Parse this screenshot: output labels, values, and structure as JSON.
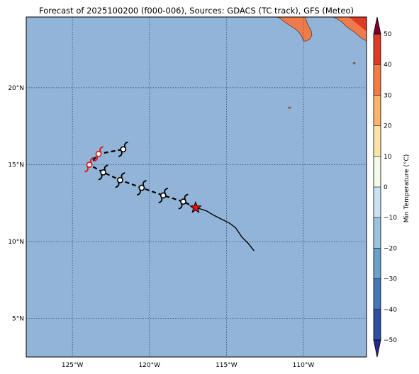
{
  "title": "Forecast of 2025100200 (f000-006), Sources: GDACS (TC track), GFS (Meteo)",
  "map": {
    "lon_range": [
      -128,
      -105.9
    ],
    "lat_range": [
      2.5,
      24.6
    ],
    "ocean_color": "#92b4d8",
    "land_color": "#f07b4a",
    "gridline_style": "dotted",
    "lon_ticks": [
      {
        "value": -125,
        "label": "125°W"
      },
      {
        "value": -120,
        "label": "120°W"
      },
      {
        "value": -115,
        "label": "115°W"
      },
      {
        "value": -110,
        "label": "110°W"
      }
    ],
    "lat_ticks": [
      {
        "value": 5,
        "label": "5°N"
      },
      {
        "value": 10,
        "label": "10°N"
      },
      {
        "value": 15,
        "label": "15°N"
      },
      {
        "value": 20,
        "label": "20°N"
      }
    ]
  },
  "observed_track": [
    [
      -113.2,
      9.4
    ],
    [
      -113.6,
      9.9
    ],
    [
      -114.0,
      10.3
    ],
    [
      -114.4,
      10.9
    ],
    [
      -114.8,
      11.2
    ],
    [
      -115.4,
      11.5
    ],
    [
      -115.8,
      11.7
    ],
    [
      -116.3,
      12.0
    ],
    [
      -116.6,
      12.1
    ],
    [
      -117.0,
      12.2
    ]
  ],
  "current_position": {
    "lon": -117.0,
    "lat": 12.2,
    "marker": "star-icon",
    "color": "#e01010"
  },
  "forecast_track": {
    "line_style": "dashed",
    "points": [
      {
        "lon": -117.0,
        "lat": 12.2
      },
      {
        "lon": -117.8,
        "lat": 12.6,
        "symbol": "tropical-storm-icon",
        "color": "#000000"
      },
      {
        "lon": -119.1,
        "lat": 13.0,
        "symbol": "tropical-storm-icon",
        "color": "#000000"
      },
      {
        "lon": -120.5,
        "lat": 13.5,
        "symbol": "tropical-storm-icon",
        "color": "#000000"
      },
      {
        "lon": -121.9,
        "lat": 14.0,
        "symbol": "tropical-storm-icon",
        "color": "#000000"
      },
      {
        "lon": -123.0,
        "lat": 14.5,
        "symbol": "tropical-storm-icon",
        "color": "#000000"
      },
      {
        "lon": -123.9,
        "lat": 15.0,
        "symbol": "hurricane-icon",
        "color": "#e01010"
      },
      {
        "lon": -123.3,
        "lat": 15.7,
        "symbol": "hurricane-icon",
        "color": "#e01010"
      },
      {
        "lon": -121.7,
        "lat": 16.0,
        "symbol": "tropical-storm-icon",
        "color": "#000000"
      }
    ]
  },
  "islands": [
    {
      "lon": -110.9,
      "lat": 18.7
    },
    {
      "lon": -106.7,
      "lat": 21.6
    }
  ],
  "colorbar": {
    "label": "Min Temperature (°C)",
    "min": -50,
    "max": 50,
    "step": 10,
    "tick_labels": [
      "−50",
      "−40",
      "−30",
      "−20",
      "−10",
      "0",
      "10",
      "20",
      "30",
      "40",
      "50"
    ],
    "colors": [
      "#2a2a8a",
      "#2f4fa0",
      "#4577b6",
      "#6aa0cc",
      "#98c4de",
      "#c8e3ef",
      "#f3fbe8",
      "#fde3a6",
      "#fcb46c",
      "#f37c45",
      "#de3a24",
      "#b31228",
      "#7e0025"
    ]
  }
}
